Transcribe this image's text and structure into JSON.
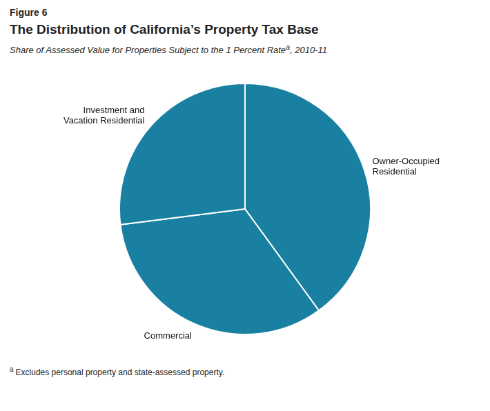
{
  "chart_data": {
    "type": "pie",
    "figure_label": "Figure 6",
    "title": "The Distribution of California’s Property Tax Base",
    "subtitle": [
      "Share of Assessed Value for Properties Subject to the 1 Percent Rate",
      "a",
      ", 2010-11"
    ],
    "footnote": [
      "a",
      "Excludes personal property and state-assessed property."
    ],
    "categories": [
      "Owner-Occupied\nResidential",
      "Commercial",
      "Investment and\nVacation Residential"
    ],
    "values": [
      40,
      33,
      27
    ],
    "color": "#1a80a2",
    "legend": false
  }
}
